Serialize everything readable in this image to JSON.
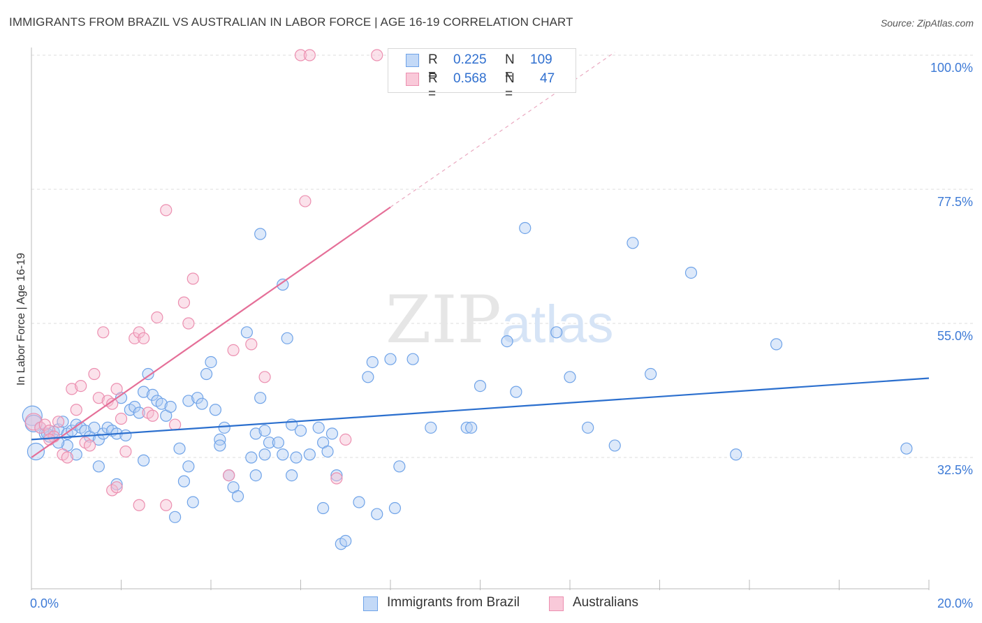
{
  "chart_data": {
    "type": "scatter",
    "title": "IMMIGRANTS FROM BRAZIL VS AUSTRALIAN IN LABOR FORCE | AGE 16-19 CORRELATION CHART",
    "source": "Source: ZipAtlas.com",
    "ylabel": "In Labor Force | Age 16-19",
    "xlabel": "",
    "xlim": [
      0,
      20
    ],
    "ylim": [
      12,
      102
    ],
    "x_tick_labels": [
      "0.0%",
      "20.0%"
    ],
    "y_ticks": [
      {
        "value": 100.0,
        "label": "100.0%"
      },
      {
        "value": 77.5,
        "label": "77.5%"
      },
      {
        "value": 55.0,
        "label": "55.0%"
      },
      {
        "value": 32.5,
        "label": "32.5%"
      }
    ],
    "grid": true,
    "watermark": "ZIPatlas",
    "legend": {
      "r_label": "R =",
      "n_label": "N =",
      "entries": [
        {
          "name": "Immigrants from Brazil",
          "r": "0.225",
          "n": "109",
          "color": "#6fa3e8",
          "fill": "#c3d9f7"
        },
        {
          "name": "Australians",
          "r": "0.568",
          "n": "47",
          "color": "#ec8fb0",
          "fill": "#f9c9d9"
        }
      ]
    },
    "series": [
      {
        "name": "Immigrants from Brazil",
        "color": "#6fa3e8",
        "trend": {
          "x0": 0.0,
          "y0": 35.5,
          "x1": 20.0,
          "y1": 45.8,
          "color": "#2b6fce"
        },
        "points": [
          {
            "x": 0.02,
            "y": 39.5,
            "s": 14
          },
          {
            "x": 0.05,
            "y": 38.2,
            "s": 12
          },
          {
            "x": 0.1,
            "y": 33.5,
            "s": 12
          },
          {
            "x": 0.2,
            "y": 37.5
          },
          {
            "x": 0.3,
            "y": 36.5
          },
          {
            "x": 0.4,
            "y": 36.0
          },
          {
            "x": 0.5,
            "y": 36.8
          },
          {
            "x": 0.6,
            "y": 37.2
          },
          {
            "x": 0.7,
            "y": 38.5
          },
          {
            "x": 0.8,
            "y": 36.5
          },
          {
            "x": 0.9,
            "y": 37.0
          },
          {
            "x": 1.0,
            "y": 38.0
          },
          {
            "x": 1.1,
            "y": 37.5
          },
          {
            "x": 1.2,
            "y": 37.0
          },
          {
            "x": 1.3,
            "y": 36.0
          },
          {
            "x": 1.5,
            "y": 35.5
          },
          {
            "x": 1.6,
            "y": 36.5
          },
          {
            "x": 1.7,
            "y": 37.5
          },
          {
            "x": 1.8,
            "y": 37.0
          },
          {
            "x": 1.9,
            "y": 36.5
          },
          {
            "x": 1.0,
            "y": 33.0
          },
          {
            "x": 0.8,
            "y": 34.5
          },
          {
            "x": 2.0,
            "y": 42.5
          },
          {
            "x": 2.1,
            "y": 36.2
          },
          {
            "x": 2.2,
            "y": 40.5
          },
          {
            "x": 2.3,
            "y": 41.0
          },
          {
            "x": 2.4,
            "y": 40.0
          },
          {
            "x": 2.5,
            "y": 43.5
          },
          {
            "x": 2.6,
            "y": 46.5
          },
          {
            "x": 2.7,
            "y": 43.0
          },
          {
            "x": 2.8,
            "y": 42.0
          },
          {
            "x": 2.9,
            "y": 41.5
          },
          {
            "x": 3.0,
            "y": 39.5
          },
          {
            "x": 3.1,
            "y": 41.0
          },
          {
            "x": 3.3,
            "y": 34.0
          },
          {
            "x": 3.4,
            "y": 28.5
          },
          {
            "x": 2.5,
            "y": 32.0
          },
          {
            "x": 1.5,
            "y": 31.0
          },
          {
            "x": 1.9,
            "y": 28.0
          },
          {
            "x": 3.2,
            "y": 22.5
          },
          {
            "x": 3.5,
            "y": 42.0
          },
          {
            "x": 3.7,
            "y": 42.5
          },
          {
            "x": 3.8,
            "y": 41.5
          },
          {
            "x": 3.9,
            "y": 46.5
          },
          {
            "x": 4.0,
            "y": 48.5
          },
          {
            "x": 4.1,
            "y": 40.5
          },
          {
            "x": 4.2,
            "y": 35.5
          },
          {
            "x": 4.3,
            "y": 37.5
          },
          {
            "x": 4.4,
            "y": 29.5
          },
          {
            "x": 4.5,
            "y": 27.5
          },
          {
            "x": 4.6,
            "y": 26.0
          },
          {
            "x": 3.5,
            "y": 31.0
          },
          {
            "x": 3.6,
            "y": 25.0
          },
          {
            "x": 4.8,
            "y": 53.5
          },
          {
            "x": 5.1,
            "y": 42.5
          },
          {
            "x": 5.0,
            "y": 36.5
          },
          {
            "x": 5.2,
            "y": 37.0
          },
          {
            "x": 5.3,
            "y": 35.0
          },
          {
            "x": 4.9,
            "y": 32.5
          },
          {
            "x": 5.0,
            "y": 29.5
          },
          {
            "x": 4.2,
            "y": 34.5
          },
          {
            "x": 5.1,
            "y": 70.0
          },
          {
            "x": 5.6,
            "y": 61.5
          },
          {
            "x": 5.7,
            "y": 52.5
          },
          {
            "x": 5.5,
            "y": 35.0
          },
          {
            "x": 5.6,
            "y": 33.0
          },
          {
            "x": 5.8,
            "y": 38.0
          },
          {
            "x": 5.9,
            "y": 32.5
          },
          {
            "x": 6.0,
            "y": 37.0
          },
          {
            "x": 6.2,
            "y": 33.0
          },
          {
            "x": 6.4,
            "y": 37.5
          },
          {
            "x": 6.5,
            "y": 35.0
          },
          {
            "x": 6.7,
            "y": 36.5
          },
          {
            "x": 6.6,
            "y": 33.5
          },
          {
            "x": 6.8,
            "y": 29.5
          },
          {
            "x": 6.9,
            "y": 18.0
          },
          {
            "x": 6.5,
            "y": 24.0
          },
          {
            "x": 5.8,
            "y": 29.5
          },
          {
            "x": 5.2,
            "y": 33.0
          },
          {
            "x": 7.3,
            "y": 25.0
          },
          {
            "x": 7.0,
            "y": 18.5
          },
          {
            "x": 7.5,
            "y": 46.0
          },
          {
            "x": 7.7,
            "y": 23.0
          },
          {
            "x": 7.6,
            "y": 48.5
          },
          {
            "x": 8.0,
            "y": 49.0
          },
          {
            "x": 8.1,
            "y": 24.0
          },
          {
            "x": 8.2,
            "y": 31.0
          },
          {
            "x": 8.5,
            "y": 49.0
          },
          {
            "x": 8.9,
            "y": 37.5
          },
          {
            "x": 9.7,
            "y": 37.5
          },
          {
            "x": 9.8,
            "y": 37.5
          },
          {
            "x": 10.0,
            "y": 44.5
          },
          {
            "x": 10.6,
            "y": 52.0
          },
          {
            "x": 10.8,
            "y": 43.5
          },
          {
            "x": 11.0,
            "y": 71.0
          },
          {
            "x": 11.7,
            "y": 53.5
          },
          {
            "x": 12.0,
            "y": 46.0
          },
          {
            "x": 12.4,
            "y": 37.5
          },
          {
            "x": 13.0,
            "y": 34.5
          },
          {
            "x": 13.4,
            "y": 68.5
          },
          {
            "x": 13.8,
            "y": 46.5
          },
          {
            "x": 14.7,
            "y": 63.5
          },
          {
            "x": 15.7,
            "y": 33.0
          },
          {
            "x": 16.6,
            "y": 51.5
          },
          {
            "x": 19.5,
            "y": 34.0
          },
          {
            "x": 0.6,
            "y": 35.0
          },
          {
            "x": 1.4,
            "y": 37.5
          },
          {
            "x": 0.35,
            "y": 36.5
          }
        ]
      },
      {
        "name": "Australians",
        "color": "#ec8fb0",
        "trend": {
          "x0": 0.0,
          "y0": 32.5,
          "x1": 8.0,
          "y1": 74.5,
          "color": "#e56f98"
        },
        "trend_ext": {
          "x0": 8.0,
          "y0": 74.5,
          "x1": 13.0,
          "y1": 100.5
        },
        "points": [
          {
            "x": 0.05,
            "y": 38.5,
            "s": 12
          },
          {
            "x": 0.2,
            "y": 37.5
          },
          {
            "x": 0.3,
            "y": 38.0
          },
          {
            "x": 0.4,
            "y": 37.0
          },
          {
            "x": 0.5,
            "y": 36.0
          },
          {
            "x": 0.6,
            "y": 38.5
          },
          {
            "x": 0.7,
            "y": 33.0
          },
          {
            "x": 0.8,
            "y": 32.5
          },
          {
            "x": 0.9,
            "y": 44.0
          },
          {
            "x": 1.0,
            "y": 40.5
          },
          {
            "x": 1.1,
            "y": 44.5
          },
          {
            "x": 1.2,
            "y": 35.0
          },
          {
            "x": 1.3,
            "y": 34.5
          },
          {
            "x": 1.4,
            "y": 46.5
          },
          {
            "x": 1.5,
            "y": 42.5
          },
          {
            "x": 1.6,
            "y": 53.5
          },
          {
            "x": 1.7,
            "y": 42.0
          },
          {
            "x": 1.8,
            "y": 41.5
          },
          {
            "x": 1.9,
            "y": 44.0
          },
          {
            "x": 2.0,
            "y": 39.0
          },
          {
            "x": 2.1,
            "y": 33.5
          },
          {
            "x": 2.3,
            "y": 52.5
          },
          {
            "x": 2.4,
            "y": 53.5
          },
          {
            "x": 2.5,
            "y": 52.5
          },
          {
            "x": 2.6,
            "y": 40.0
          },
          {
            "x": 2.7,
            "y": 39.5
          },
          {
            "x": 2.8,
            "y": 56.0
          },
          {
            "x": 3.0,
            "y": 74.0
          },
          {
            "x": 3.2,
            "y": 38.0
          },
          {
            "x": 3.4,
            "y": 58.5
          },
          {
            "x": 3.5,
            "y": 55.0
          },
          {
            "x": 3.6,
            "y": 62.5
          },
          {
            "x": 1.8,
            "y": 27.0
          },
          {
            "x": 1.9,
            "y": 27.5
          },
          {
            "x": 2.4,
            "y": 24.5
          },
          {
            "x": 3.0,
            "y": 24.5
          },
          {
            "x": 4.4,
            "y": 29.5
          },
          {
            "x": 4.5,
            "y": 50.5
          },
          {
            "x": 4.9,
            "y": 51.5
          },
          {
            "x": 5.2,
            "y": 46.0
          },
          {
            "x": 6.1,
            "y": 75.5
          },
          {
            "x": 6.0,
            "y": 100.0
          },
          {
            "x": 6.2,
            "y": 100.0
          },
          {
            "x": 7.7,
            "y": 100.0
          },
          {
            "x": 6.8,
            "y": 29.0
          },
          {
            "x": 7.0,
            "y": 35.5
          },
          {
            "x": 0.4,
            "y": 35.5
          }
        ]
      }
    ]
  }
}
